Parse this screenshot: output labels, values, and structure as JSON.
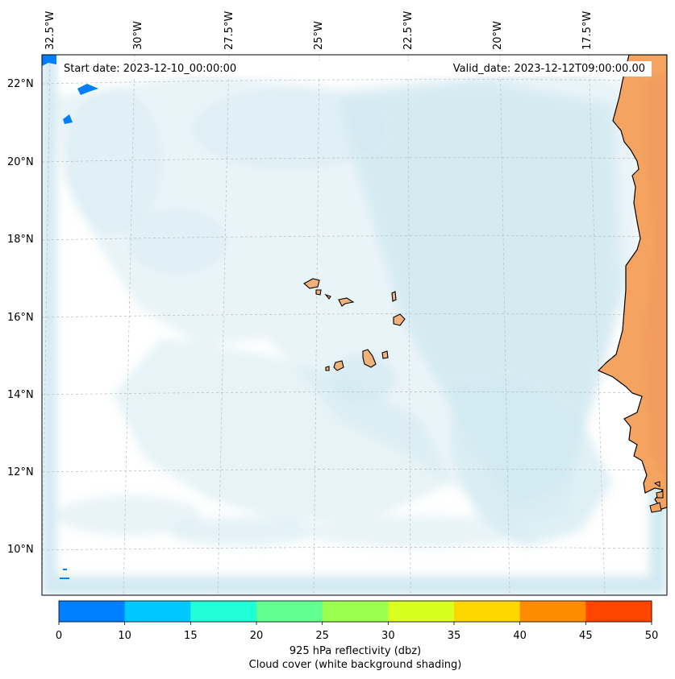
{
  "map": {
    "start_date": "Start date: 2023-12-10_00:00:00",
    "valid_date": "Valid_date: 2023-12-12T09:00:00.00",
    "lon_labels": [
      "32.5°W",
      "30°W",
      "27.5°W",
      "25°W",
      "22.5°W",
      "20°W",
      "17.5°W"
    ],
    "lat_labels": [
      "22°N",
      "20°N",
      "18°N",
      "16°N",
      "14°N",
      "12°N",
      "10°N"
    ],
    "places": [
      "Cape Verde islands",
      "West African coast"
    ],
    "colors": {
      "cloud": "#add8e6",
      "land": "#f4a460",
      "island_land": "#f0b27a",
      "coast": "#000000",
      "reflectivity_0_10": "#0080ff"
    }
  },
  "colorbar": {
    "ticks": [
      "0",
      "10",
      "15",
      "20",
      "25",
      "30",
      "35",
      "40",
      "45",
      "50"
    ],
    "colors": [
      "#0080ff",
      "#00c8ff",
      "#20ffd8",
      "#60ff90",
      "#9cff50",
      "#d8ff20",
      "#ffd700",
      "#ff8c00",
      "#ff4500"
    ],
    "label_line1": "925 hPa reflectivity (dbz)",
    "label_line2": "Cloud cover (white background shading)"
  }
}
